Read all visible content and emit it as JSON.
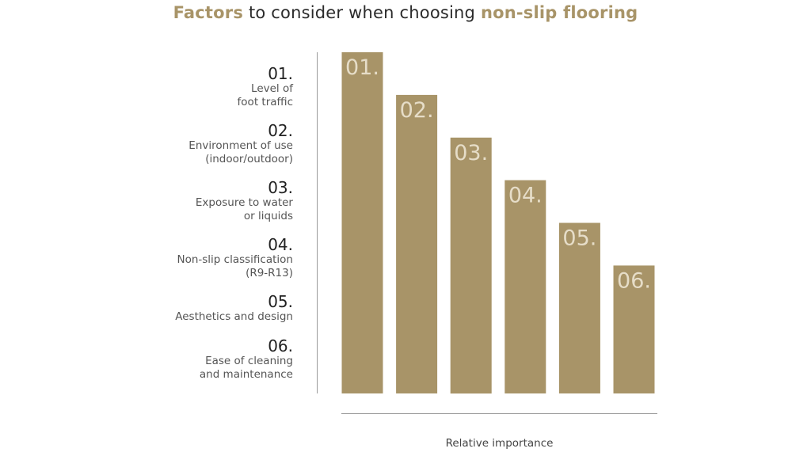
{
  "title": {
    "accent_1": "Factors",
    "middle": " to consider when choosing ",
    "accent_2": "non-slip flooring"
  },
  "colors": {
    "accent": "#a89468",
    "bar": "#a89468",
    "bar_label": "#e6ddc8"
  },
  "chart_data": {
    "type": "bar",
    "categories": [
      "01.",
      "02.",
      "03.",
      "04.",
      "05.",
      "06."
    ],
    "values": [
      6,
      5,
      4,
      3,
      2,
      1
    ],
    "xlabel": "Relative importance",
    "ylabel": "",
    "ylim": [
      -2,
      6
    ],
    "grid": false,
    "legend": "none",
    "factors": [
      {
        "number": "01.",
        "lines": [
          "Level of",
          "foot traffic"
        ]
      },
      {
        "number": "02.",
        "lines": [
          "Environment of use",
          "(indoor/outdoor)"
        ]
      },
      {
        "number": "03.",
        "lines": [
          "Exposure to water",
          "or liquids"
        ]
      },
      {
        "number": "04.",
        "lines": [
          "Non-slip classification",
          "(R9-R13)"
        ]
      },
      {
        "number": "05.",
        "lines": [
          "Aesthetics and design"
        ]
      },
      {
        "number": "06.",
        "lines": [
          "Ease of cleaning",
          "and maintenance"
        ]
      }
    ]
  }
}
